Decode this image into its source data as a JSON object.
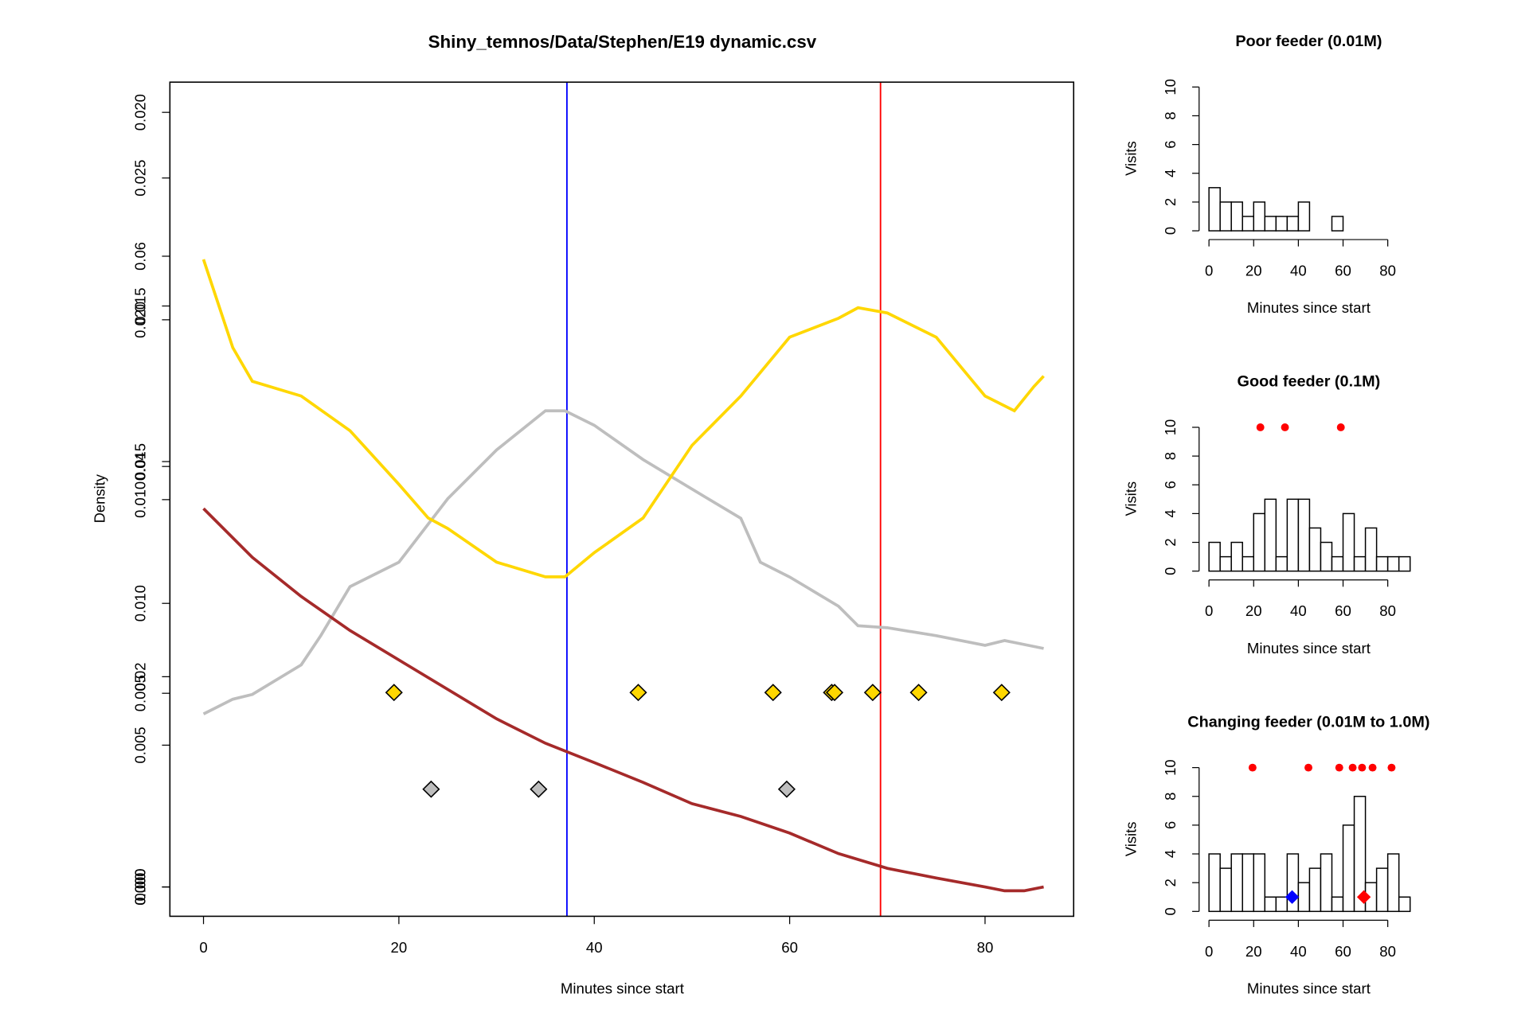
{
  "chart_data": [
    {
      "type": "line",
      "title": "Shiny_temnos/Data/Stephen/E19 dynamic.csv",
      "xlabel": "Minutes since start",
      "ylabel": "Density",
      "xlim": [
        -3.44,
        89.07
      ],
      "xticks": [
        0,
        20,
        40,
        60,
        80
      ],
      "ylim": [
        -0.001034,
        0.02838
      ],
      "yticks": [
        {
          "value": 0,
          "label": "0.000"
        },
        0.005,
        {
          "value": 0.01,
          "label": "0.010"
        },
        0.015,
        {
          "value": 0.02,
          "label": "0.020"
        },
        0.025
      ],
      "y2lim": [
        -0.00279,
        0.07656
      ],
      "y2ticks": [
        {
          "value": 0,
          "label": "0.00"
        },
        0.02,
        0.04,
        0.06
      ],
      "y3lim": [
        -0.000758,
        0.02078
      ],
      "y3ticks": [
        {
          "value": 0,
          "label": "0.000"
        },
        0.005,
        {
          "value": 0.01,
          "label": "0.010"
        },
        0.015,
        {
          "value": 0.02,
          "label": "0.020"
        }
      ],
      "series": [
        {
          "color": "#bebebe",
          "axis": "y",
          "x": [
            0,
            3,
            5,
            10,
            12,
            15,
            20,
            25,
            30,
            35,
            37,
            40,
            45,
            50,
            55,
            57,
            60,
            65,
            67,
            70,
            75,
            80,
            82,
            86
          ],
          "values": [
            0.0061,
            0.00662,
            0.00679,
            0.00783,
            0.00886,
            0.01059,
            0.01145,
            0.01369,
            0.01541,
            0.01679,
            0.01679,
            0.01628,
            0.01507,
            0.01403,
            0.013,
            0.01145,
            0.01093,
            0.0099,
            0.00921,
            0.00914,
            0.00886,
            0.00852,
            0.00869,
            0.00841
          ]
        },
        {
          "color": "#ffd700",
          "axis": "y2",
          "x": [
            0,
            3,
            5,
            10,
            15,
            20,
            23,
            25,
            30,
            35,
            37,
            40,
            45,
            50,
            55,
            60,
            65,
            67,
            70,
            75,
            80,
            83,
            85,
            86
          ],
          "values": [
            0.0597,
            0.0513,
            0.0481,
            0.0467,
            0.0434,
            0.0383,
            0.0351,
            0.0341,
            0.0309,
            0.0295,
            0.0295,
            0.0318,
            0.0351,
            0.042,
            0.0467,
            0.0523,
            0.0541,
            0.0551,
            0.0546,
            0.0523,
            0.0467,
            0.0453,
            0.0476,
            0.0486
          ]
        },
        {
          "color": "#a52a2a",
          "axis": "y3",
          "x": [
            0,
            5,
            10,
            15,
            20,
            25,
            30,
            35,
            40,
            45,
            50,
            55,
            60,
            65,
            70,
            75,
            80,
            82,
            84,
            86
          ],
          "values": [
            0.00977,
            0.00851,
            0.0075,
            0.00662,
            0.00586,
            0.0051,
            0.00434,
            0.00371,
            0.00321,
            0.0027,
            0.00215,
            0.00182,
            0.00139,
            0.00086,
            0.00048,
            0.00023,
            0,
            -0.0001,
            -0.0001,
            0
          ]
        }
      ],
      "points": [
        {
          "color": "#ffd700",
          "axis": "y2",
          "x": [
            19.5,
            44.5,
            58.3,
            64.3,
            64.6,
            68.5,
            73.2,
            81.7
          ],
          "values": [
            0.0185,
            0.0185,
            0.0185,
            0.0185,
            0.0185,
            0.0185,
            0.0185,
            0.0185
          ]
        },
        {
          "color": "#bebebe",
          "axis": "y2",
          "x": [
            23.3,
            34.3,
            59.7
          ],
          "values": [
            0.0093,
            0.0093,
            0.0093
          ]
        }
      ],
      "vlines": [
        {
          "x": 37.2,
          "color": "#0000ff"
        },
        {
          "x": 69.3,
          "color": "#ff0000"
        }
      ]
    },
    {
      "type": "histogram",
      "title": "Poor feeder (0.01M)",
      "xlabel": "Minutes since start",
      "ylabel": "Visits",
      "bins": [
        0,
        5,
        10,
        15,
        20,
        25,
        30,
        35,
        40,
        45,
        50,
        55,
        60,
        65,
        70,
        75,
        80,
        85,
        90
      ],
      "values": [
        3,
        2,
        2,
        1,
        2,
        1,
        1,
        1,
        2,
        0,
        0,
        1,
        0,
        0,
        0,
        0,
        0,
        0
      ],
      "xlim": [
        -9.28,
        98.56
      ],
      "ylim": [
        -0.27,
        10.61
      ],
      "xticks": [
        0,
        20,
        40,
        60,
        80
      ],
      "yticks": [
        0,
        2,
        4,
        6,
        8,
        10
      ]
    },
    {
      "type": "histogram",
      "title": "Good feeder (0.1M)",
      "xlabel": "Minutes since start",
      "ylabel": "Visits",
      "bins": [
        0,
        5,
        10,
        15,
        20,
        25,
        30,
        35,
        40,
        45,
        50,
        55,
        60,
        65,
        70,
        75,
        80,
        85,
        90
      ],
      "values": [
        2,
        1,
        2,
        1,
        4,
        5,
        1,
        5,
        5,
        3,
        2,
        1,
        4,
        1,
        3,
        1,
        1,
        1
      ],
      "xlim": [
        -9.28,
        98.56
      ],
      "ylim": [
        -0.27,
        10.61
      ],
      "xticks": [
        0,
        20,
        40,
        60,
        80
      ],
      "yticks": [
        0,
        2,
        4,
        6,
        8,
        10
      ],
      "dots": {
        "color": "#ff0000",
        "x": [
          23,
          34,
          59
        ],
        "values": [
          10,
          10,
          10
        ]
      }
    },
    {
      "type": "histogram",
      "title": "Changing feeder (0.01M to 1.0M)",
      "xlabel": "Minutes since start",
      "ylabel": "Visits",
      "bins": [
        0,
        5,
        10,
        15,
        20,
        25,
        30,
        35,
        40,
        45,
        50,
        55,
        60,
        65,
        70,
        75,
        80,
        85,
        90
      ],
      "values": [
        4,
        3,
        4,
        4,
        4,
        1,
        1,
        4,
        2,
        3,
        4,
        1,
        6,
        8,
        2,
        3,
        4,
        1
      ],
      "xlim": [
        -9.28,
        98.56
      ],
      "ylim": [
        -0.27,
        10.61
      ],
      "xticks": [
        0,
        20,
        40,
        60,
        80
      ],
      "yticks": [
        0,
        2,
        4,
        6,
        8,
        10
      ],
      "dots": {
        "color": "#ff0000",
        "x": [
          19.5,
          44.5,
          58.3,
          64.3,
          68.5,
          73.2,
          81.7
        ],
        "values": [
          10,
          10,
          10,
          10,
          10,
          10,
          10
        ]
      },
      "diamonds": [
        {
          "color": "#0000ff",
          "x": 37.2,
          "value": 1
        },
        {
          "color": "#ff0000",
          "x": 69.3,
          "value": 1
        }
      ]
    }
  ]
}
